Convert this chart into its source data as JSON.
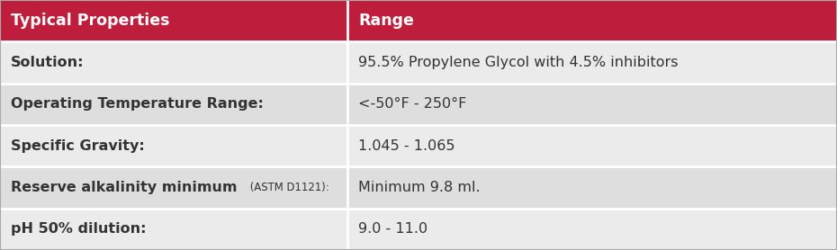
{
  "header": [
    "Typical Properties",
    "Range"
  ],
  "header_bg": "#be1e3c",
  "header_text_color": "#ffffff",
  "rows": [
    [
      "Solution:",
      "95.5% Propylene Glycol with 4.5% inhibitors"
    ],
    [
      "Operating Temperature Range:",
      "<-50°F - 250°F"
    ],
    [
      "Specific Gravity:",
      "1.045 - 1.065"
    ],
    [
      "Reserve alkalinity minimum",
      "(ASTM D1121):",
      "Minimum 9.8 ml."
    ],
    [
      "pH 50% dilution:",
      "",
      "9.0 - 11.0"
    ]
  ],
  "row_bg_light": "#ebebeb",
  "row_bg_dark": "#dedede",
  "text_color": "#333333",
  "border_color": "#ffffff",
  "col_split": 0.415,
  "font_size": 11.5,
  "header_font_size": 12.5,
  "outer_border_color": "#aaaaaa",
  "outer_border_lw": 1.2
}
